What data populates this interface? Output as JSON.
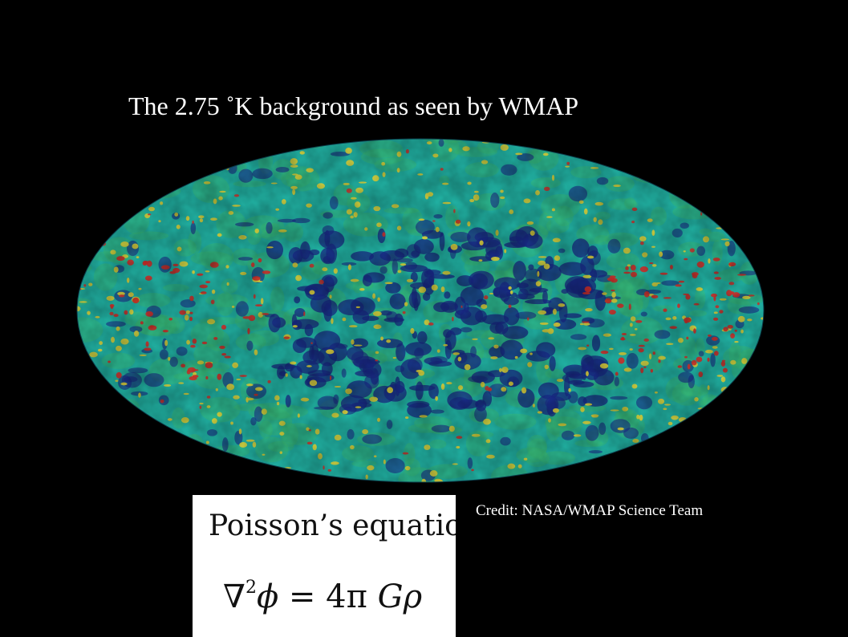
{
  "slide": {
    "title": "The 2.75 ˚K background as seen by WMAP",
    "credit": "Credit: NASA/WMAP Science Team"
  },
  "equation": {
    "heading": "Poisson’s equation:",
    "nabla": "∇",
    "power": "2",
    "lhs_symbol": "ϕ",
    "equals": "=",
    "coefficient": "4π",
    "rhs_symbols": "Gρ"
  },
  "colors": {
    "background": "#000000",
    "map_blue": "#1a2a8a",
    "map_cyan": "#1fb8b0",
    "map_green": "#3cc47a",
    "map_yellow": "#e6d83a",
    "map_red": "#d8302a"
  }
}
